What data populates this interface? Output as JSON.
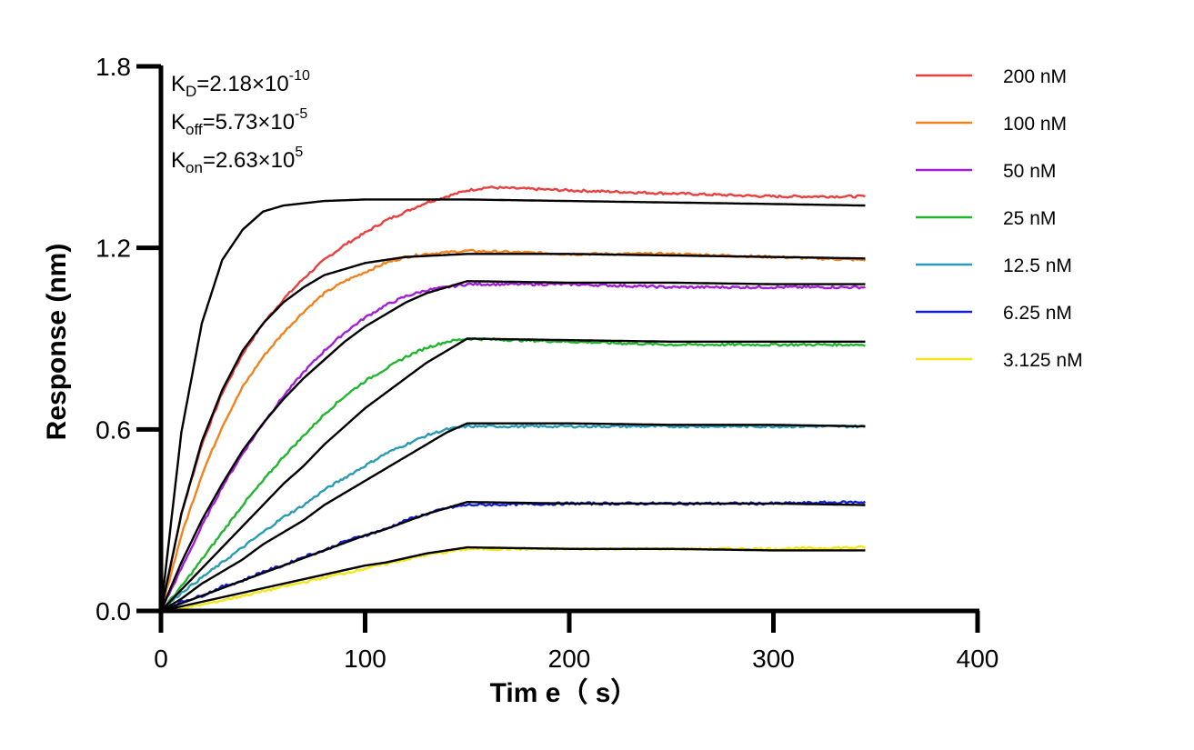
{
  "chart_data": {
    "type": "line",
    "xlabel": "Tim e（ s）",
    "ylabel": "Response (nm)",
    "xlim": [
      0,
      400
    ],
    "ylim": [
      0,
      1.8
    ],
    "x_ticks": [
      "0",
      "100",
      "200",
      "300",
      "400"
    ],
    "y_ticks": [
      "0.0",
      "0.6",
      "1.2",
      "1.8"
    ],
    "grid": false,
    "legend_position": "top-right",
    "kinetics": {
      "kd_label": "K",
      "kd_sub": "D",
      "kd_value": "=2.18×10",
      "kd_exp": "-10",
      "koff_label": "K",
      "koff_sub": "off",
      "koff_value": "=5.73×10",
      "koff_exp": "-5",
      "kon_label": "K",
      "kon_sub": "on",
      "kon_value": "=2.63×10",
      "kon_exp": "5"
    },
    "association_end_s": 150,
    "end_s": 345,
    "fit_color": "#000000",
    "series": [
      {
        "name": "200 nM",
        "color": "#e8403e",
        "measured": [
          [
            0,
            0
          ],
          [
            10,
            0.32
          ],
          [
            20,
            0.55
          ],
          [
            30,
            0.72
          ],
          [
            40,
            0.85
          ],
          [
            50,
            0.95
          ],
          [
            60,
            1.03
          ],
          [
            70,
            1.1
          ],
          [
            80,
            1.16
          ],
          [
            90,
            1.21
          ],
          [
            100,
            1.25
          ],
          [
            110,
            1.29
          ],
          [
            120,
            1.32
          ],
          [
            130,
            1.35
          ],
          [
            140,
            1.37
          ],
          [
            150,
            1.39
          ],
          [
            160,
            1.4
          ],
          [
            200,
            1.39
          ],
          [
            250,
            1.38
          ],
          [
            300,
            1.37
          ],
          [
            345,
            1.37
          ]
        ],
        "fit": [
          [
            0,
            0
          ],
          [
            10,
            0.59
          ],
          [
            20,
            0.95
          ],
          [
            30,
            1.16
          ],
          [
            40,
            1.26
          ],
          [
            50,
            1.32
          ],
          [
            60,
            1.34
          ],
          [
            80,
            1.355
          ],
          [
            100,
            1.36
          ],
          [
            150,
            1.36
          ],
          [
            200,
            1.355
          ],
          [
            250,
            1.35
          ],
          [
            300,
            1.345
          ],
          [
            345,
            1.34
          ]
        ]
      },
      {
        "name": "100 nM",
        "color": "#f2821e",
        "measured": [
          [
            0,
            0
          ],
          [
            10,
            0.25
          ],
          [
            20,
            0.45
          ],
          [
            30,
            0.61
          ],
          [
            40,
            0.74
          ],
          [
            50,
            0.84
          ],
          [
            60,
            0.92
          ],
          [
            70,
            0.99
          ],
          [
            80,
            1.05
          ],
          [
            90,
            1.09
          ],
          [
            100,
            1.12
          ],
          [
            110,
            1.15
          ],
          [
            120,
            1.17
          ],
          [
            130,
            1.18
          ],
          [
            150,
            1.19
          ],
          [
            200,
            1.18
          ],
          [
            250,
            1.18
          ],
          [
            300,
            1.17
          ],
          [
            345,
            1.16
          ]
        ],
        "fit": [
          [
            0,
            0
          ],
          [
            10,
            0.32
          ],
          [
            20,
            0.56
          ],
          [
            30,
            0.73
          ],
          [
            40,
            0.86
          ],
          [
            50,
            0.95
          ],
          [
            60,
            1.02
          ],
          [
            70,
            1.07
          ],
          [
            80,
            1.11
          ],
          [
            100,
            1.15
          ],
          [
            120,
            1.17
          ],
          [
            150,
            1.18
          ],
          [
            200,
            1.18
          ],
          [
            250,
            1.175
          ],
          [
            300,
            1.17
          ],
          [
            345,
            1.165
          ]
        ]
      },
      {
        "name": "50 nM",
        "color": "#a31fd6",
        "measured": [
          [
            0,
            0
          ],
          [
            10,
            0.14
          ],
          [
            20,
            0.28
          ],
          [
            30,
            0.41
          ],
          [
            40,
            0.52
          ],
          [
            50,
            0.62
          ],
          [
            60,
            0.71
          ],
          [
            70,
            0.79
          ],
          [
            80,
            0.86
          ],
          [
            90,
            0.92
          ],
          [
            100,
            0.97
          ],
          [
            110,
            1.01
          ],
          [
            120,
            1.04
          ],
          [
            130,
            1.06
          ],
          [
            140,
            1.07
          ],
          [
            150,
            1.08
          ],
          [
            200,
            1.08
          ],
          [
            250,
            1.07
          ],
          [
            300,
            1.07
          ],
          [
            345,
            1.07
          ]
        ],
        "fit": [
          [
            0,
            0
          ],
          [
            10,
            0.16
          ],
          [
            20,
            0.3
          ],
          [
            30,
            0.42
          ],
          [
            40,
            0.53
          ],
          [
            50,
            0.62
          ],
          [
            60,
            0.7
          ],
          [
            70,
            0.77
          ],
          [
            80,
            0.83
          ],
          [
            90,
            0.89
          ],
          [
            100,
            0.94
          ],
          [
            110,
            0.98
          ],
          [
            120,
            1.02
          ],
          [
            130,
            1.05
          ],
          [
            140,
            1.07
          ],
          [
            150,
            1.09
          ],
          [
            200,
            1.085
          ],
          [
            250,
            1.085
          ],
          [
            300,
            1.08
          ],
          [
            345,
            1.08
          ]
        ]
      },
      {
        "name": "25 nM",
        "color": "#22b52f",
        "measured": [
          [
            0,
            0
          ],
          [
            10,
            0.08
          ],
          [
            20,
            0.17
          ],
          [
            30,
            0.26
          ],
          [
            40,
            0.35
          ],
          [
            50,
            0.43
          ],
          [
            60,
            0.51
          ],
          [
            70,
            0.58
          ],
          [
            80,
            0.65
          ],
          [
            90,
            0.71
          ],
          [
            100,
            0.76
          ],
          [
            110,
            0.8
          ],
          [
            120,
            0.84
          ],
          [
            130,
            0.87
          ],
          [
            140,
            0.89
          ],
          [
            150,
            0.9
          ],
          [
            200,
            0.89
          ],
          [
            250,
            0.88
          ],
          [
            300,
            0.88
          ],
          [
            345,
            0.88
          ]
        ],
        "fit": [
          [
            0,
            0
          ],
          [
            10,
            0.07
          ],
          [
            20,
            0.14
          ],
          [
            30,
            0.21
          ],
          [
            40,
            0.28
          ],
          [
            50,
            0.35
          ],
          [
            60,
            0.42
          ],
          [
            70,
            0.48
          ],
          [
            80,
            0.55
          ],
          [
            90,
            0.61
          ],
          [
            100,
            0.67
          ],
          [
            110,
            0.72
          ],
          [
            120,
            0.77
          ],
          [
            130,
            0.82
          ],
          [
            140,
            0.86
          ],
          [
            150,
            0.9
          ],
          [
            200,
            0.895
          ],
          [
            250,
            0.89
          ],
          [
            300,
            0.89
          ],
          [
            345,
            0.89
          ]
        ]
      },
      {
        "name": "12.5 nM",
        "color": "#2a9bb2",
        "measured": [
          [
            0,
            0
          ],
          [
            10,
            0.06
          ],
          [
            20,
            0.11
          ],
          [
            30,
            0.16
          ],
          [
            40,
            0.21
          ],
          [
            50,
            0.26
          ],
          [
            60,
            0.31
          ],
          [
            70,
            0.35
          ],
          [
            80,
            0.4
          ],
          [
            90,
            0.44
          ],
          [
            100,
            0.48
          ],
          [
            110,
            0.52
          ],
          [
            120,
            0.55
          ],
          [
            130,
            0.58
          ],
          [
            140,
            0.6
          ],
          [
            150,
            0.61
          ],
          [
            200,
            0.61
          ],
          [
            250,
            0.61
          ],
          [
            300,
            0.61
          ],
          [
            345,
            0.61
          ]
        ],
        "fit": [
          [
            0,
            0
          ],
          [
            10,
            0.04
          ],
          [
            20,
            0.09
          ],
          [
            30,
            0.13
          ],
          [
            40,
            0.17
          ],
          [
            50,
            0.22
          ],
          [
            60,
            0.26
          ],
          [
            70,
            0.3
          ],
          [
            80,
            0.35
          ],
          [
            90,
            0.39
          ],
          [
            100,
            0.43
          ],
          [
            110,
            0.47
          ],
          [
            120,
            0.51
          ],
          [
            130,
            0.55
          ],
          [
            140,
            0.59
          ],
          [
            150,
            0.62
          ],
          [
            200,
            0.62
          ],
          [
            250,
            0.615
          ],
          [
            300,
            0.615
          ],
          [
            345,
            0.61
          ]
        ]
      },
      {
        "name": "6.25 nM",
        "color": "#1420d4",
        "measured": [
          [
            0,
            0
          ],
          [
            10,
            0.03
          ],
          [
            20,
            0.05
          ],
          [
            30,
            0.08
          ],
          [
            40,
            0.1
          ],
          [
            50,
            0.13
          ],
          [
            60,
            0.15
          ],
          [
            70,
            0.18
          ],
          [
            80,
            0.2
          ],
          [
            90,
            0.23
          ],
          [
            100,
            0.25
          ],
          [
            110,
            0.27
          ],
          [
            120,
            0.3
          ],
          [
            130,
            0.32
          ],
          [
            140,
            0.34
          ],
          [
            150,
            0.35
          ],
          [
            200,
            0.355
          ],
          [
            250,
            0.355
          ],
          [
            300,
            0.355
          ],
          [
            345,
            0.36
          ]
        ],
        "fit": [
          [
            0,
            0
          ],
          [
            10,
            0.025
          ],
          [
            20,
            0.05
          ],
          [
            30,
            0.075
          ],
          [
            40,
            0.1
          ],
          [
            50,
            0.125
          ],
          [
            60,
            0.15
          ],
          [
            70,
            0.175
          ],
          [
            80,
            0.2
          ],
          [
            90,
            0.225
          ],
          [
            100,
            0.25
          ],
          [
            110,
            0.27
          ],
          [
            120,
            0.295
          ],
          [
            130,
            0.32
          ],
          [
            140,
            0.34
          ],
          [
            150,
            0.36
          ],
          [
            200,
            0.355
          ],
          [
            250,
            0.355
          ],
          [
            300,
            0.355
          ],
          [
            345,
            0.35
          ]
        ]
      },
      {
        "name": "3.125 nM",
        "color": "#f4e619",
        "measured": [
          [
            0,
            0
          ],
          [
            10,
            0.01
          ],
          [
            20,
            0.02
          ],
          [
            30,
            0.035
          ],
          [
            40,
            0.05
          ],
          [
            50,
            0.065
          ],
          [
            60,
            0.08
          ],
          [
            70,
            0.095
          ],
          [
            80,
            0.11
          ],
          [
            90,
            0.125
          ],
          [
            100,
            0.14
          ],
          [
            110,
            0.155
          ],
          [
            120,
            0.17
          ],
          [
            130,
            0.185
          ],
          [
            140,
            0.195
          ],
          [
            150,
            0.205
          ],
          [
            200,
            0.205
          ],
          [
            250,
            0.205
          ],
          [
            300,
            0.205
          ],
          [
            345,
            0.21
          ]
        ],
        "fit": [
          [
            0,
            0
          ],
          [
            10,
            0.015
          ],
          [
            20,
            0.03
          ],
          [
            30,
            0.045
          ],
          [
            40,
            0.06
          ],
          [
            50,
            0.075
          ],
          [
            60,
            0.09
          ],
          [
            70,
            0.105
          ],
          [
            80,
            0.12
          ],
          [
            90,
            0.135
          ],
          [
            100,
            0.15
          ],
          [
            110,
            0.16
          ],
          [
            120,
            0.175
          ],
          [
            130,
            0.19
          ],
          [
            140,
            0.2
          ],
          [
            150,
            0.21
          ],
          [
            200,
            0.205
          ],
          [
            250,
            0.205
          ],
          [
            300,
            0.2
          ],
          [
            345,
            0.2
          ]
        ]
      }
    ]
  }
}
